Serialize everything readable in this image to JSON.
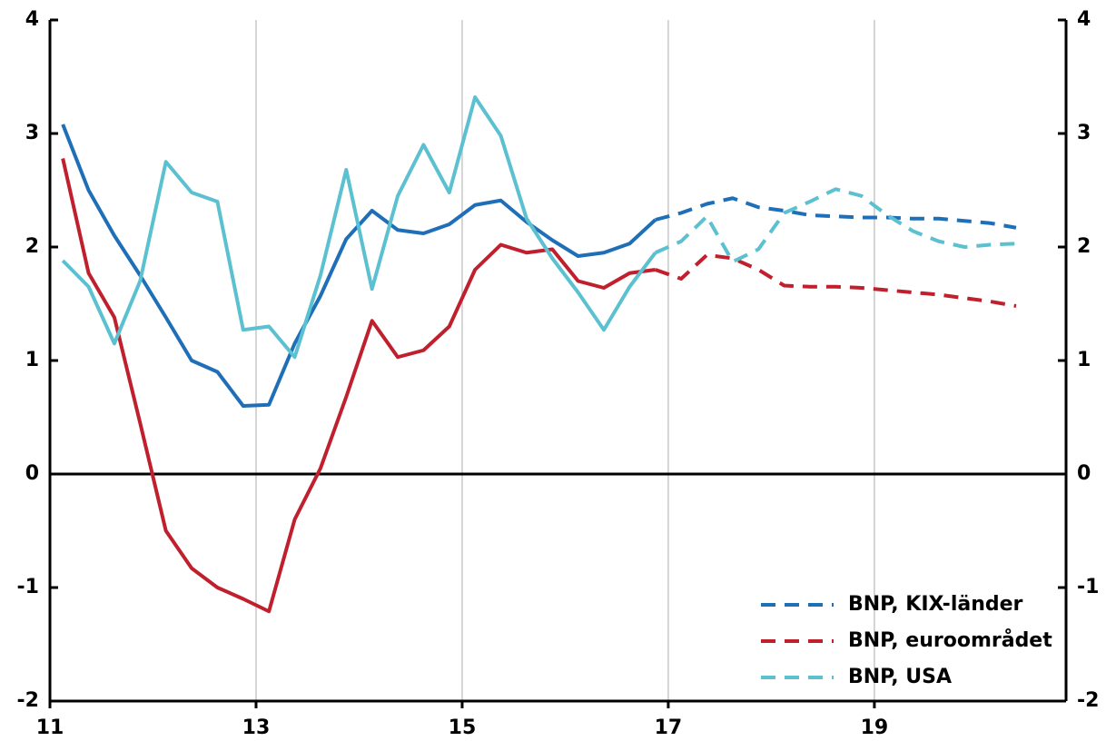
{
  "chart_data": {
    "type": "line",
    "x": [
      11.125,
      11.375,
      11.625,
      11.875,
      12.125,
      12.375,
      12.625,
      12.875,
      13.125,
      13.375,
      13.625,
      13.875,
      14.125,
      14.375,
      14.625,
      14.875,
      15.125,
      15.375,
      15.625,
      15.875,
      16.125,
      16.375,
      16.625,
      16.875,
      17.125,
      17.375,
      17.625,
      17.875,
      18.125,
      18.375,
      18.625,
      18.875,
      19.125,
      19.375,
      19.625,
      19.875,
      20.125,
      20.375
    ],
    "series": [
      {
        "color": "#1f6fb8",
        "dash": false,
        "values": [
          3.08,
          2.5,
          2.1,
          1.75,
          1.38,
          1.0,
          0.9,
          0.6,
          0.61,
          1.15,
          1.57,
          2.07,
          2.32,
          2.15,
          2.12,
          2.2,
          2.37,
          2.41,
          2.22,
          2.06,
          1.92,
          1.95,
          2.03,
          2.24,
          null,
          null,
          null,
          null,
          null,
          null,
          null,
          null,
          null,
          null,
          null,
          null,
          null,
          null
        ]
      },
      {
        "color": "#c0202e",
        "dash": false,
        "values": [
          2.78,
          1.77,
          1.38,
          0.45,
          -0.5,
          -0.83,
          -1.0,
          -1.1,
          -1.21,
          -0.4,
          0.05,
          0.68,
          1.35,
          1.03,
          1.09,
          1.3,
          1.8,
          2.02,
          1.95,
          1.98,
          1.7,
          1.64,
          1.77,
          1.8,
          null,
          null,
          null,
          null,
          null,
          null,
          null,
          null,
          null,
          null,
          null,
          null,
          null,
          null
        ]
      },
      {
        "color": "#5bc0cf",
        "dash": false,
        "values": [
          1.88,
          1.65,
          1.15,
          1.7,
          2.75,
          2.48,
          2.4,
          1.27,
          1.3,
          1.03,
          1.75,
          2.68,
          1.63,
          2.45,
          2.9,
          2.48,
          3.32,
          2.98,
          2.25,
          1.9,
          1.6,
          1.27,
          1.65,
          1.95,
          null,
          null,
          null,
          null,
          null,
          null,
          null,
          null,
          null,
          null,
          null,
          null,
          null,
          null
        ]
      },
      {
        "name": "BNP, KIX-länder",
        "color": "#1f6fb8",
        "dash": true,
        "values": [
          null,
          null,
          null,
          null,
          null,
          null,
          null,
          null,
          null,
          null,
          null,
          null,
          null,
          null,
          null,
          null,
          null,
          null,
          null,
          null,
          null,
          null,
          null,
          2.24,
          2.3,
          2.38,
          2.43,
          2.35,
          2.32,
          2.28,
          2.27,
          2.26,
          2.26,
          2.25,
          2.25,
          2.23,
          2.21,
          2.17
        ]
      },
      {
        "name": "BNP, euroområdet",
        "color": "#c0202e",
        "dash": true,
        "values": [
          null,
          null,
          null,
          null,
          null,
          null,
          null,
          null,
          null,
          null,
          null,
          null,
          null,
          null,
          null,
          null,
          null,
          null,
          null,
          null,
          null,
          null,
          null,
          1.8,
          1.72,
          1.93,
          1.9,
          1.8,
          1.66,
          1.65,
          1.65,
          1.64,
          1.62,
          1.6,
          1.58,
          1.55,
          1.52,
          1.48
        ]
      },
      {
        "name": "BNP, USA",
        "color": "#5bc0cf",
        "dash": true,
        "values": [
          null,
          null,
          null,
          null,
          null,
          null,
          null,
          null,
          null,
          null,
          null,
          null,
          null,
          null,
          null,
          null,
          null,
          null,
          null,
          null,
          null,
          null,
          null,
          1.95,
          2.05,
          2.27,
          1.87,
          1.98,
          2.3,
          2.4,
          2.51,
          2.45,
          2.28,
          2.14,
          2.05,
          2.0,
          2.02,
          2.03
        ]
      }
    ],
    "xlim": [
      11,
      20.86
    ],
    "xticks": [
      11,
      13,
      15,
      17,
      19
    ],
    "ylim": [
      -2,
      4
    ],
    "yticks": [
      -2,
      -1,
      0,
      1,
      2,
      3,
      4
    ],
    "xgrid": true,
    "legend": "lower right"
  }
}
